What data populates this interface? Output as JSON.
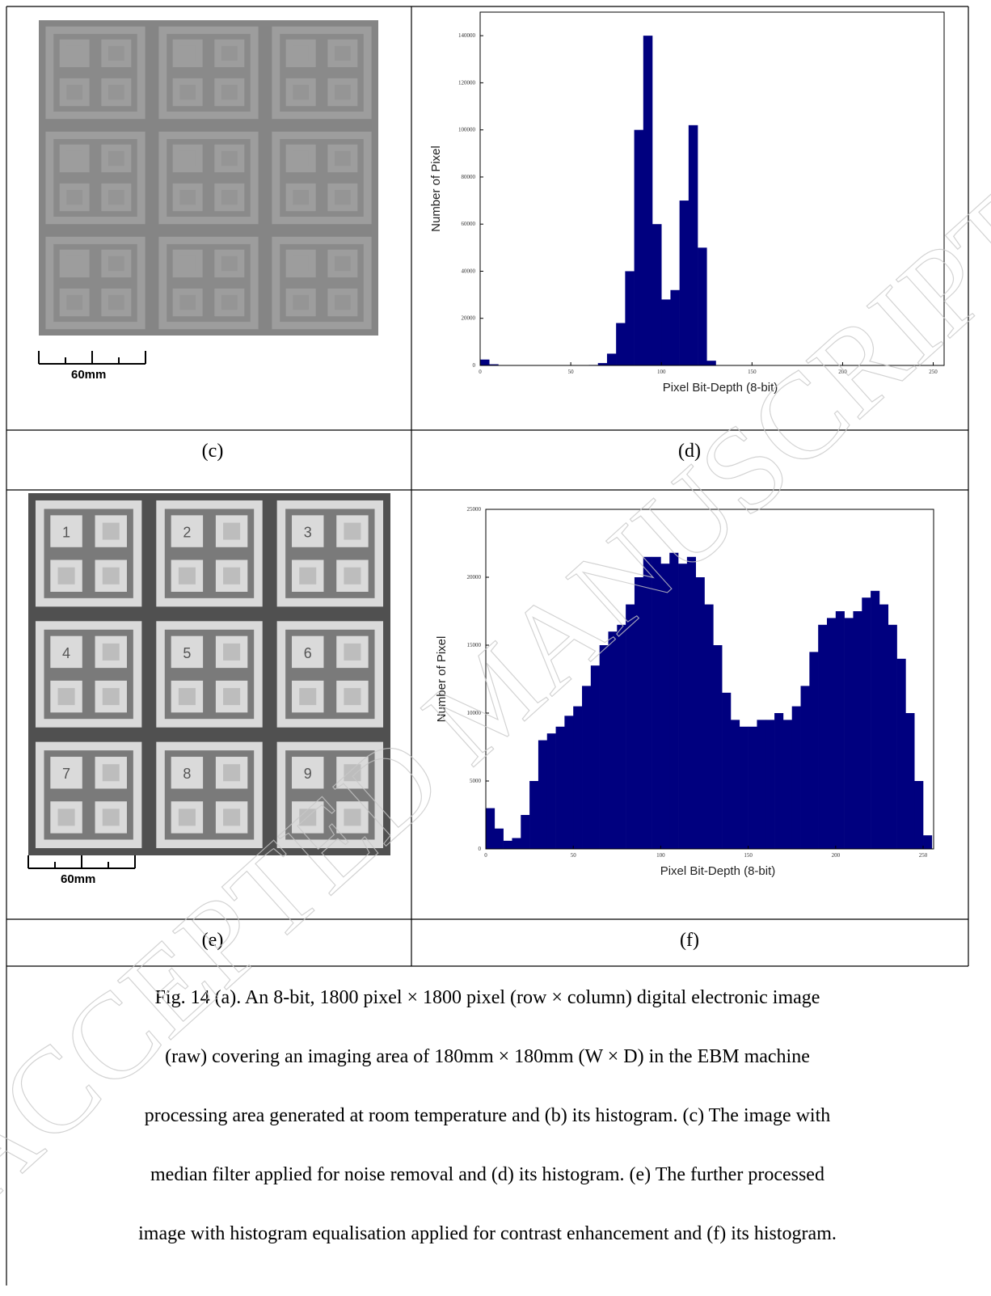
{
  "chart_data": [
    {
      "type": "histogram",
      "panel": "(d)",
      "x_label": "Pixel Bit-Depth (8-bit)",
      "y_label": "Number of Pixel",
      "color": "#00007f",
      "bins": [
        0,
        5,
        10,
        15,
        20,
        25,
        30,
        35,
        40,
        45,
        50,
        55,
        60,
        65,
        70,
        75,
        80,
        85,
        90,
        95,
        100,
        105,
        110,
        115,
        120,
        125,
        130,
        135,
        140,
        145,
        150,
        155,
        160,
        165,
        170,
        175,
        180,
        185,
        190,
        195,
        200,
        205,
        210,
        215,
        220,
        225,
        230,
        235,
        240,
        245,
        250,
        255
      ],
      "values": [
        2500,
        500,
        0,
        0,
        0,
        0,
        0,
        0,
        0,
        0,
        0,
        0,
        200,
        1000,
        5000,
        18000,
        40000,
        100000,
        140000,
        60000,
        28000,
        32000,
        70000,
        102000,
        50000,
        2000,
        0,
        0,
        0,
        0,
        0,
        0,
        0,
        0,
        0,
        0,
        0,
        0,
        0,
        0,
        0,
        0,
        0,
        0,
        0,
        0,
        0,
        0,
        0,
        0,
        0
      ],
      "xlim": [
        0,
        256
      ],
      "xticks": [
        0,
        50,
        100,
        150,
        200,
        250
      ],
      "ylim": [
        0,
        150000
      ],
      "yticks": [
        0,
        20000,
        40000,
        60000,
        80000,
        100000,
        120000,
        140000
      ]
    },
    {
      "type": "histogram",
      "panel": "(f)",
      "x_label": "Pixel Bit-Depth (8-bit)",
      "y_label": "Number of Pixel",
      "color": "#00007f",
      "bins": [
        0,
        5,
        10,
        15,
        20,
        25,
        30,
        35,
        40,
        45,
        50,
        55,
        60,
        65,
        70,
        75,
        80,
        85,
        90,
        95,
        100,
        105,
        110,
        115,
        120,
        125,
        130,
        135,
        140,
        145,
        150,
        155,
        160,
        165,
        170,
        175,
        180,
        185,
        190,
        195,
        200,
        205,
        210,
        215,
        220,
        225,
        230,
        235,
        240,
        245,
        250,
        255
      ],
      "values": [
        3000,
        1500,
        600,
        800,
        2500,
        5000,
        8000,
        8500,
        9000,
        9800,
        10500,
        12000,
        13500,
        15000,
        16000,
        16500,
        18000,
        20000,
        21500,
        21500,
        21000,
        21800,
        21000,
        21500,
        20000,
        18000,
        15000,
        11500,
        9500,
        9000,
        9000,
        9500,
        9500,
        10000,
        9500,
        10500,
        12000,
        14500,
        16500,
        17000,
        17500,
        17000,
        17500,
        18500,
        19000,
        18000,
        16500,
        14000,
        10000,
        5000,
        1000
      ],
      "xlim": [
        0,
        256
      ],
      "xticks": [
        0,
        50,
        100,
        150,
        200,
        250
      ],
      "ylim": [
        0,
        25000
      ],
      "yticks": [
        0,
        5000,
        10000,
        15000,
        20000,
        25000
      ]
    }
  ],
  "images": [
    {
      "panel": "(c)",
      "scale_bar": "60mm"
    },
    {
      "panel": "(e)",
      "scale_bar": "60mm",
      "labels": [
        "1",
        "2",
        "3",
        "4",
        "5",
        "6",
        "7",
        "8",
        "9"
      ]
    }
  ],
  "caption": {
    "lines": [
      "Fig. 14 (a).  An 8-bit, 1800 pixel × 1800 pixel (row × column) digital electronic image",
      "(raw) covering an imaging area of 180mm × 180mm (W × D) in the EBM machine",
      "processing area generated at room temperature and (b) its histogram. (c) The image with",
      "median filter applied for noise removal and (d) its histogram. (e) The further processed",
      "image with histogram equalisation applied for contrast enhancement and (f) its histogram."
    ]
  },
  "watermark": "ACCEPTED MANUSCRIPT"
}
